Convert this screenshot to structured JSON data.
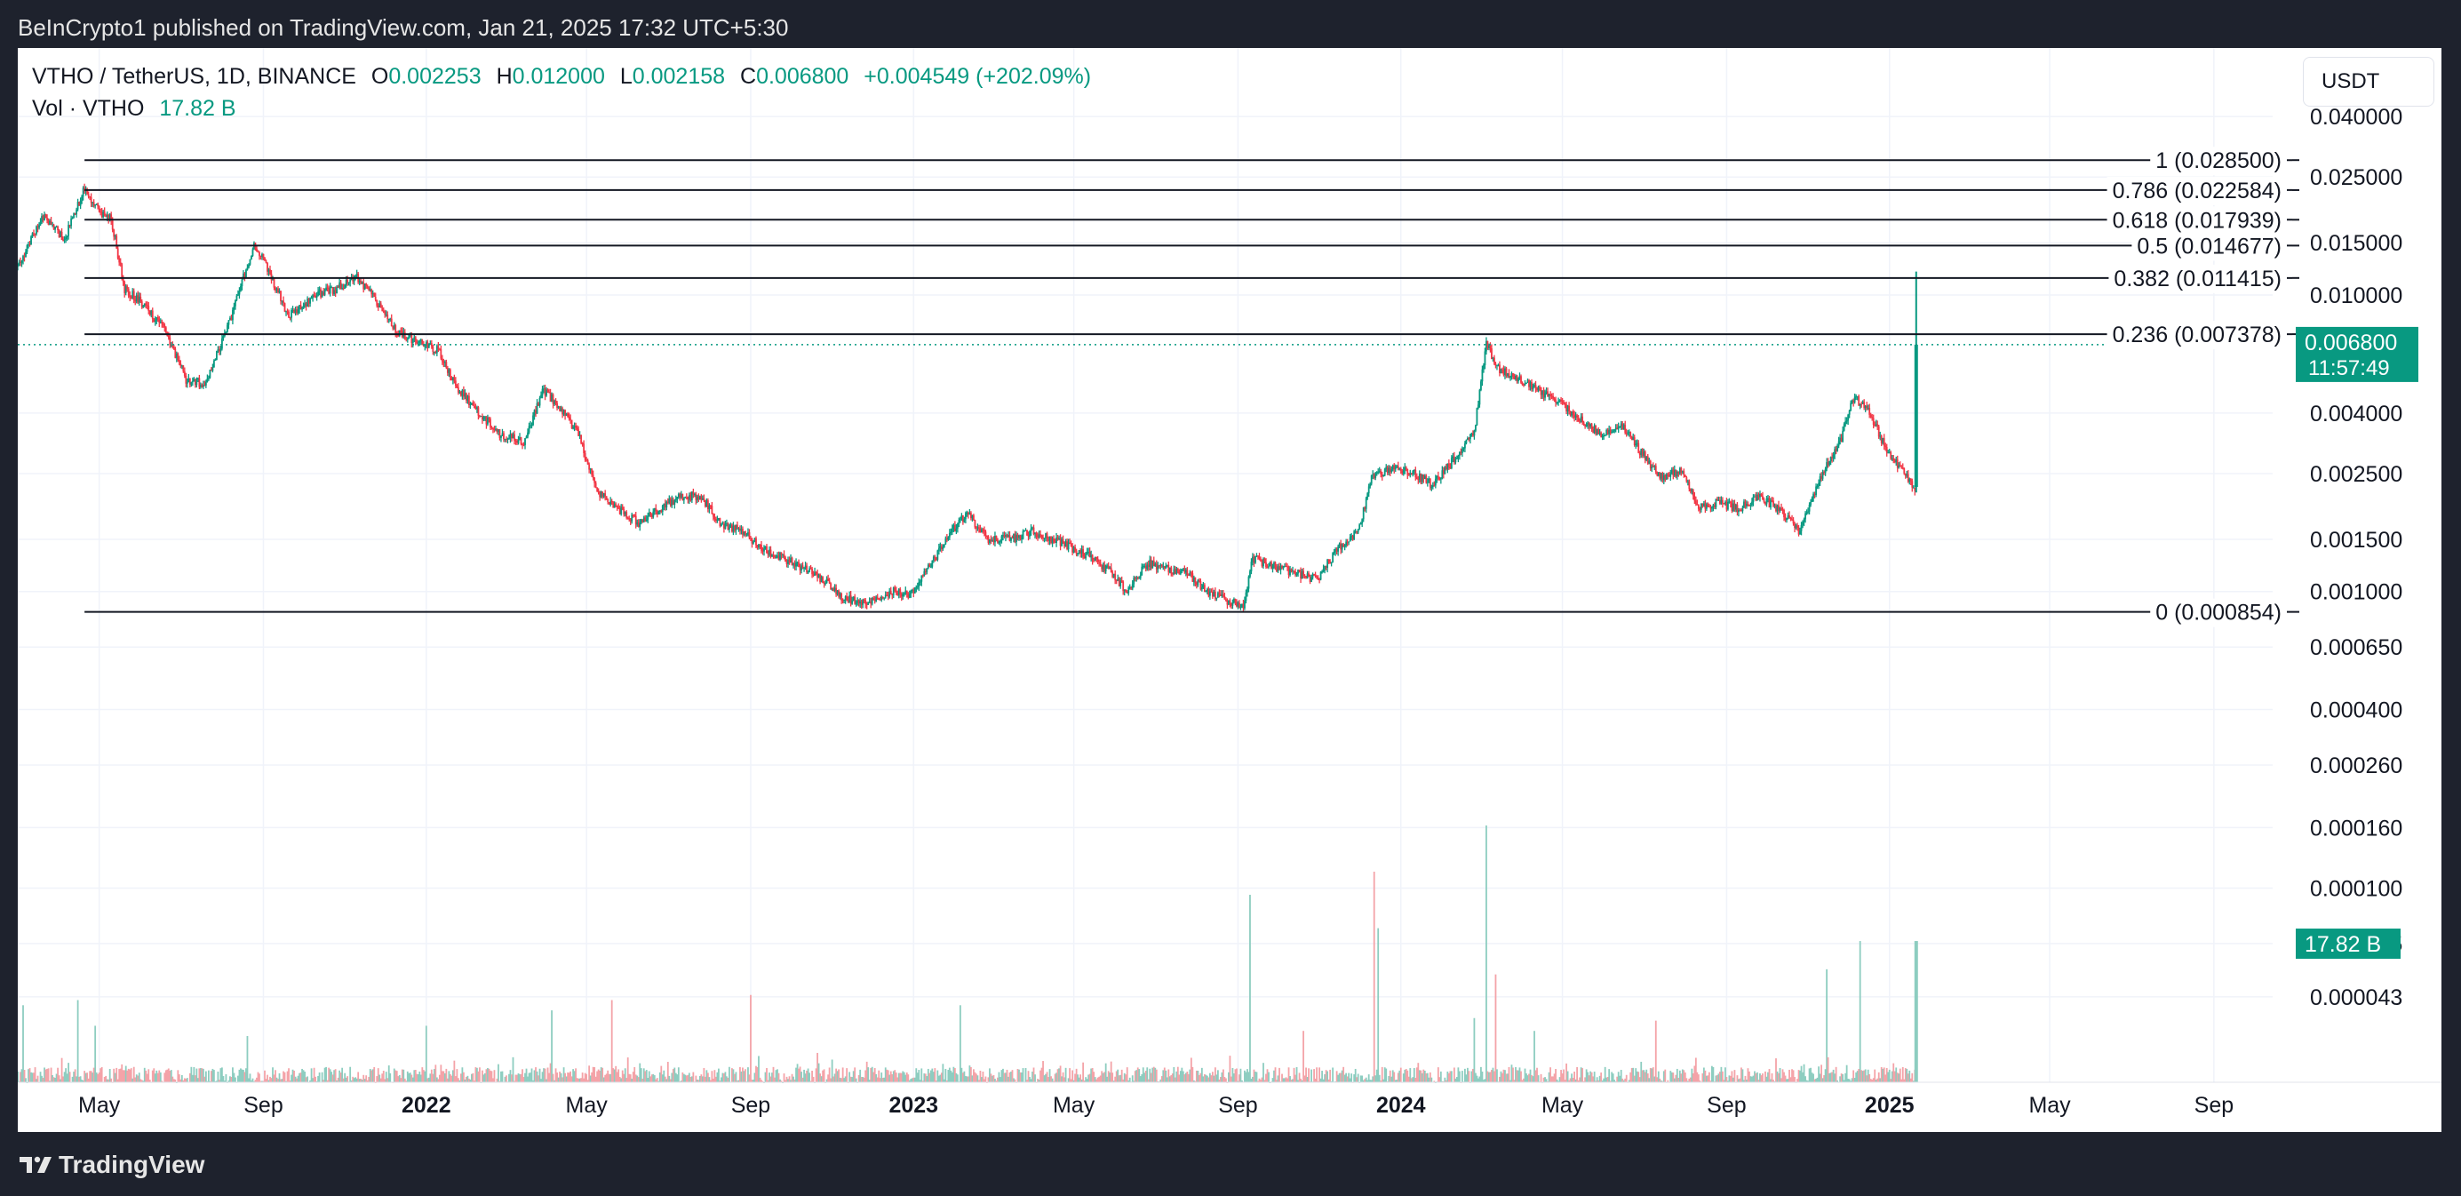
{
  "header": {
    "published": "BeInCrypto1 published on TradingView.com, Jan 21, 2025 17:32 UTC+5:30"
  },
  "legend": {
    "symbol": "VTHO / TetherUS, 1D, BINANCE",
    "open_label": "O",
    "open": "0.002253",
    "high_label": "H",
    "high": "0.012000",
    "low_label": "L",
    "low": "0.002158",
    "close_label": "C",
    "close": "0.006800",
    "change": "+0.004549 (+202.09%)",
    "vol_label": "Vol · VTHO",
    "vol_value": "17.82 B"
  },
  "currency": "USDT",
  "footer": {
    "brand": "TradingView"
  },
  "colors": {
    "up": "#089981",
    "down": "#f23645",
    "vol_up": "#8dcdc0",
    "vol_down": "#f4a3a8",
    "grid": "#f0f3fa",
    "fib_line": "#131722",
    "price_tag": "#089981"
  },
  "chart_data": {
    "type": "candlestick",
    "symbol": "VTHO / TetherUS",
    "interval": "1D",
    "exchange": "BINANCE",
    "y_scale": "log",
    "ylim": [
      3e-05,
      0.042
    ],
    "y_ticks": [
      "0.040000",
      "0.025000",
      "0.015000",
      "0.010000",
      "0.004000",
      "0.002500",
      "0.001500",
      "0.001000",
      "0.000650",
      "0.000400",
      "0.000260",
      "0.000160",
      "0.000100",
      "0.000065",
      "0.000043"
    ],
    "x_range": [
      "2021-03-01",
      "2025-10-15"
    ],
    "x_ticks": [
      {
        "label": "May",
        "date": "2021-05-01"
      },
      {
        "label": "Sep",
        "date": "2021-09-01"
      },
      {
        "label": "2022",
        "date": "2022-01-01"
      },
      {
        "label": "May",
        "date": "2022-05-01"
      },
      {
        "label": "Sep",
        "date": "2022-09-01"
      },
      {
        "label": "2023",
        "date": "2023-01-01"
      },
      {
        "label": "May",
        "date": "2023-05-01"
      },
      {
        "label": "Sep",
        "date": "2023-09-01"
      },
      {
        "label": "2024",
        "date": "2024-01-01"
      },
      {
        "label": "May",
        "date": "2024-05-01"
      },
      {
        "label": "Sep",
        "date": "2024-09-01"
      },
      {
        "label": "2025",
        "date": "2025-01-01"
      },
      {
        "label": "May",
        "date": "2025-05-01"
      },
      {
        "label": "Sep",
        "date": "2025-09-01"
      }
    ],
    "price_path": [
      [
        "2021-03-01",
        0.0125
      ],
      [
        "2021-03-20",
        0.0185
      ],
      [
        "2021-04-05",
        0.0155
      ],
      [
        "2021-04-20",
        0.023
      ],
      [
        "2021-05-01",
        0.019
      ],
      [
        "2021-05-10",
        0.018
      ],
      [
        "2021-05-20",
        0.0105
      ],
      [
        "2021-06-01",
        0.0095
      ],
      [
        "2021-06-20",
        0.0075
      ],
      [
        "2021-07-05",
        0.0052
      ],
      [
        "2021-07-20",
        0.005
      ],
      [
        "2021-08-10",
        0.009
      ],
      [
        "2021-08-25",
        0.015
      ],
      [
        "2021-09-05",
        0.012
      ],
      [
        "2021-09-20",
        0.0085
      ],
      [
        "2021-10-10",
        0.01
      ],
      [
        "2021-10-25",
        0.0105
      ],
      [
        "2021-11-10",
        0.0115
      ],
      [
        "2021-11-25",
        0.0095
      ],
      [
        "2021-12-10",
        0.0075
      ],
      [
        "2021-12-25",
        0.007
      ],
      [
        "2022-01-10",
        0.0065
      ],
      [
        "2022-01-25",
        0.0048
      ],
      [
        "2022-02-10",
        0.004
      ],
      [
        "2022-02-25",
        0.0034
      ],
      [
        "2022-03-15",
        0.0032
      ],
      [
        "2022-03-30",
        0.0048
      ],
      [
        "2022-04-10",
        0.0042
      ],
      [
        "2022-04-25",
        0.0034
      ],
      [
        "2022-05-08",
        0.0022
      ],
      [
        "2022-05-25",
        0.0019
      ],
      [
        "2022-06-10",
        0.0017
      ],
      [
        "2022-06-25",
        0.0019
      ],
      [
        "2022-07-10",
        0.0021
      ],
      [
        "2022-07-25",
        0.0021
      ],
      [
        "2022-08-10",
        0.0017
      ],
      [
        "2022-08-25",
        0.0016
      ],
      [
        "2022-09-10",
        0.0014
      ],
      [
        "2022-09-25",
        0.0013
      ],
      [
        "2022-10-10",
        0.0012
      ],
      [
        "2022-10-25",
        0.0011
      ],
      [
        "2022-11-10",
        0.00095
      ],
      [
        "2022-11-25",
        0.00092
      ],
      [
        "2022-12-15",
        0.001
      ],
      [
        "2022-12-30",
        0.00098
      ],
      [
        "2023-01-15",
        0.00125
      ],
      [
        "2023-01-30",
        0.0016
      ],
      [
        "2023-02-10",
        0.00185
      ],
      [
        "2023-02-25",
        0.0015
      ],
      [
        "2023-03-15",
        0.0015
      ],
      [
        "2023-03-30",
        0.0016
      ],
      [
        "2023-04-15",
        0.0015
      ],
      [
        "2023-04-30",
        0.0014
      ],
      [
        "2023-05-15",
        0.0013
      ],
      [
        "2023-05-30",
        0.00115
      ],
      [
        "2023-06-10",
        0.001
      ],
      [
        "2023-06-25",
        0.00125
      ],
      [
        "2023-07-10",
        0.0012
      ],
      [
        "2023-07-25",
        0.00115
      ],
      [
        "2023-08-10",
        0.001
      ],
      [
        "2023-08-25",
        0.00093
      ],
      [
        "2023-09-05",
        0.0009
      ],
      [
        "2023-09-12",
        0.0013
      ],
      [
        "2023-09-30",
        0.0012
      ],
      [
        "2023-10-15",
        0.00115
      ],
      [
        "2023-10-30",
        0.0011
      ],
      [
        "2023-11-15",
        0.0014
      ],
      [
        "2023-11-30",
        0.0016
      ],
      [
        "2023-12-10",
        0.0024
      ],
      [
        "2023-12-25",
        0.0026
      ],
      [
        "2024-01-10",
        0.0025
      ],
      [
        "2024-01-25",
        0.0023
      ],
      [
        "2024-02-10",
        0.0028
      ],
      [
        "2024-02-25",
        0.0035
      ],
      [
        "2024-03-05",
        0.0068
      ],
      [
        "2024-03-15",
        0.0056
      ],
      [
        "2024-03-30",
        0.0052
      ],
      [
        "2024-04-15",
        0.0047
      ],
      [
        "2024-04-30",
        0.0043
      ],
      [
        "2024-05-15",
        0.0038
      ],
      [
        "2024-05-30",
        0.0034
      ],
      [
        "2024-06-15",
        0.0036
      ],
      [
        "2024-06-30",
        0.0029
      ],
      [
        "2024-07-15",
        0.0024
      ],
      [
        "2024-07-30",
        0.0026
      ],
      [
        "2024-08-10",
        0.0019
      ],
      [
        "2024-08-25",
        0.002
      ],
      [
        "2024-09-10",
        0.0019
      ],
      [
        "2024-09-25",
        0.0021
      ],
      [
        "2024-10-10",
        0.0019
      ],
      [
        "2024-10-25",
        0.0016
      ],
      [
        "2024-11-10",
        0.0024
      ],
      [
        "2024-11-25",
        0.0032
      ],
      [
        "2024-12-05",
        0.0045
      ],
      [
        "2024-12-15",
        0.0042
      ],
      [
        "2024-12-30",
        0.003
      ],
      [
        "2025-01-10",
        0.0026
      ],
      [
        "2025-01-19",
        0.00225
      ],
      [
        "2025-01-20",
        0.00225
      ]
    ],
    "last_candle": {
      "date": "2025-01-21",
      "open": 0.002253,
      "high": 0.012,
      "low": 0.002158,
      "close": 0.0068
    },
    "volume": {
      "last": "17.82 B",
      "spikes": [
        [
          "2021-03-05",
          0.3
        ],
        [
          "2021-04-15",
          0.32
        ],
        [
          "2021-04-28",
          0.22
        ],
        [
          "2021-08-20",
          0.18
        ],
        [
          "2022-01-01",
          0.22
        ],
        [
          "2022-04-05",
          0.28
        ],
        [
          "2022-05-20",
          0.32
        ],
        [
          "2022-09-01",
          0.34
        ],
        [
          "2023-02-05",
          0.3
        ],
        [
          "2023-09-10",
          0.73
        ],
        [
          "2023-10-20",
          0.2
        ],
        [
          "2023-12-12",
          0.82
        ],
        [
          "2023-12-15",
          0.6
        ],
        [
          "2024-02-25",
          0.25
        ],
        [
          "2024-03-05",
          1.0
        ],
        [
          "2024-03-12",
          0.42
        ],
        [
          "2024-04-10",
          0.2
        ],
        [
          "2024-07-10",
          0.24
        ],
        [
          "2024-11-15",
          0.44
        ],
        [
          "2024-12-10",
          0.55
        ],
        [
          "2025-01-21",
          0.55
        ]
      ]
    },
    "fibonacci": [
      {
        "level": "1",
        "price": 0.0285,
        "label": "1 (0.028500)"
      },
      {
        "level": "0.786",
        "price": 0.022584,
        "label": "0.786 (0.022584)"
      },
      {
        "level": "0.618",
        "price": 0.017939,
        "label": "0.618 (0.017939)"
      },
      {
        "level": "0.5",
        "price": 0.014677,
        "label": "0.5 (0.014677)"
      },
      {
        "level": "0.382",
        "price": 0.011415,
        "label": "0.382 (0.011415)"
      },
      {
        "level": "0.236",
        "price": 0.007378,
        "label": "0.236 (0.007378)"
      },
      {
        "level": "0",
        "price": 0.000854,
        "label": "0 (0.000854)"
      }
    ],
    "fib_start_date": "2021-04-20",
    "current_price": {
      "price": 0.0068,
      "label": "0.006800",
      "countdown": "11:57:49"
    }
  }
}
